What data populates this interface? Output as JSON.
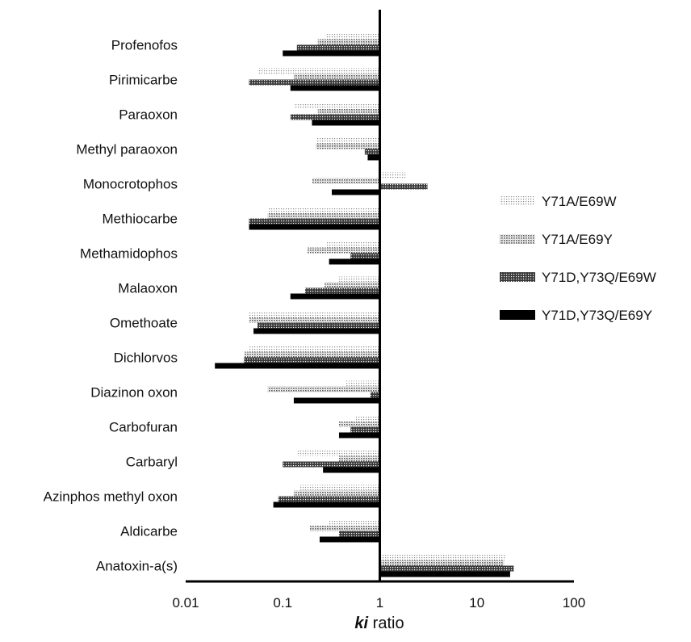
{
  "chart_data": {
    "type": "bar",
    "orientation": "horizontal",
    "xscale": "log",
    "xlim": [
      0.01,
      100
    ],
    "xticks": [
      "0.01",
      "0.1",
      "1",
      "10",
      "100"
    ],
    "xlabel_emph": "ki",
    "xlabel_rest": " ratio",
    "baseline": 1,
    "legend_position": "right",
    "categories": [
      "Profenofos",
      "Pirimicarbe",
      "Paraoxon",
      "Methyl paraoxon",
      "Monocrotophos",
      "Methiocarbe",
      "Methamidophos",
      "Malaoxon",
      "Omethoate",
      "Dichlorvos",
      "Diazinon oxon",
      "Carbofuran",
      "Carbaryl",
      "Azinphos methyl oxon",
      "Aldicarbe",
      "Anatoxin-a(s)"
    ],
    "series": [
      {
        "name": "Y71A/E69W",
        "color": "#e4e4e4",
        "pattern": "light-dots",
        "values": [
          0.28,
          0.055,
          0.13,
          0.22,
          1.9,
          0.07,
          0.28,
          0.38,
          0.045,
          0.045,
          0.45,
          0.55,
          0.14,
          0.15,
          0.3,
          20
        ]
      },
      {
        "name": "Y71A/E69Y",
        "color": "#c4c4c4",
        "pattern": "medium-dots",
        "values": [
          0.23,
          0.13,
          0.23,
          0.22,
          0.2,
          0.07,
          0.18,
          0.27,
          0.045,
          0.04,
          0.07,
          0.38,
          0.38,
          0.13,
          0.19,
          19
        ]
      },
      {
        "name": "Y71D,Y73Q/E69W",
        "color": "#6e6e6e",
        "pattern": "dark-crosshatch",
        "values": [
          0.14,
          0.045,
          0.12,
          0.7,
          3.1,
          0.045,
          0.5,
          0.17,
          0.055,
          0.04,
          0.8,
          0.5,
          0.1,
          0.09,
          0.38,
          24
        ]
      },
      {
        "name": "Y71D,Y73Q/E69Y",
        "color": "#000000",
        "pattern": "solid",
        "values": [
          0.1,
          0.12,
          0.2,
          0.75,
          0.32,
          0.045,
          0.3,
          0.12,
          0.05,
          0.02,
          0.13,
          0.38,
          0.26,
          0.08,
          0.24,
          22
        ]
      }
    ]
  }
}
